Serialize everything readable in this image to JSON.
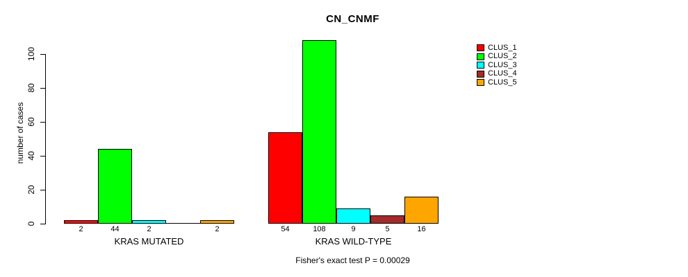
{
  "chart_data": {
    "type": "bar",
    "title": "CN_CNMF",
    "xlabel": "",
    "ylabel": "number of cases",
    "ylim": [
      0,
      100
    ],
    "yticks": [
      0,
      20,
      40,
      60,
      80,
      100
    ],
    "grid": false,
    "legend_position": "right",
    "series_names": [
      "CLUS_1",
      "CLUS_2",
      "CLUS_3",
      "CLUS_4",
      "CLUS_5"
    ],
    "series_colors": [
      "#FF0000",
      "#00FF00",
      "#00FFFF",
      "#A52A2A",
      "#FFA500"
    ],
    "groups": [
      {
        "label": "KRAS MUTATED",
        "values": [
          2,
          44,
          2,
          0,
          2
        ],
        "bar_labels": [
          "2",
          "44",
          "2",
          "",
          "2"
        ]
      },
      {
        "label": "KRAS WILD-TYPE",
        "values": [
          54,
          108,
          9,
          5,
          16
        ],
        "bar_labels": [
          "54",
          "108",
          "9",
          "5",
          "16"
        ]
      }
    ],
    "annotation": "Fisher's exact test P = 0.00029"
  }
}
